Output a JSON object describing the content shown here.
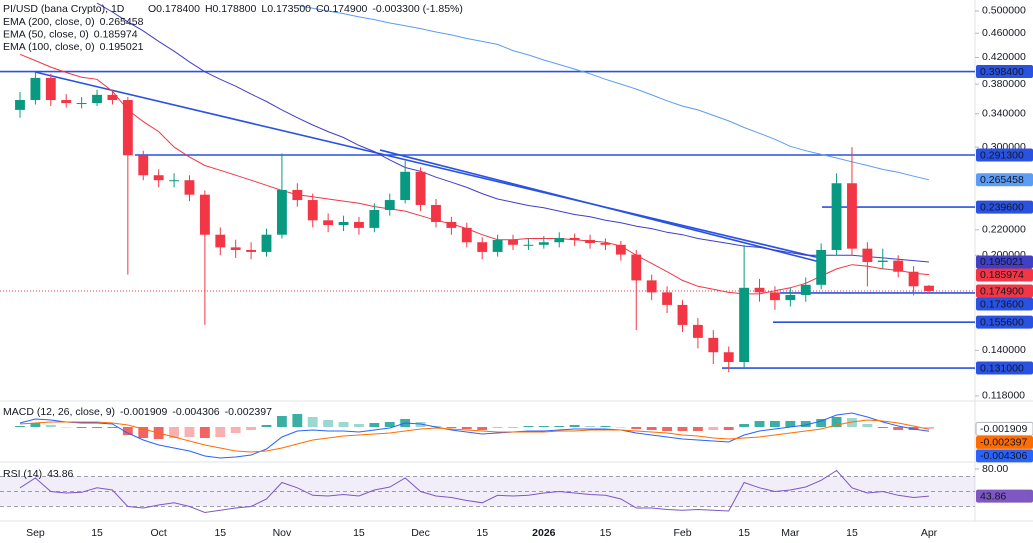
{
  "chart_data": [
    {
      "type": "candlestick",
      "title": "PI/USD (bana Crypto), 1D",
      "ohlc_labels": [
        "O0.178400",
        "H0.178800",
        "L0.173500",
        "C0.174900",
        "-0.003300 (-1.85%)"
      ],
      "categories": [
        null,
        "Sep",
        null,
        null,
        null,
        "15",
        null,
        null,
        null,
        "Oct",
        null,
        null,
        null,
        "15",
        null,
        null,
        null,
        "Nov",
        null,
        null,
        null,
        null,
        "15",
        null,
        null,
        null,
        "Dec",
        null,
        null,
        null,
        "15",
        null,
        null,
        null,
        "2026",
        null,
        null,
        null,
        "15",
        null,
        null,
        null,
        null,
        "Feb",
        null,
        null,
        null,
        "15",
        null,
        null,
        "Mar",
        null,
        null,
        null,
        "15",
        null,
        null,
        null,
        null,
        "Apr"
      ],
      "open": [
        0.345,
        0.358,
        0.389,
        0.358,
        0.354,
        0.354,
        0.365,
        0.358,
        0.291,
        0.27,
        0.265,
        0.265,
        0.251,
        0.216,
        0.206,
        0.204,
        0.2025,
        0.216,
        0.2555,
        0.246,
        0.228,
        0.224,
        0.2266,
        0.2216,
        0.237,
        0.246,
        0.2735,
        0.2415,
        0.2266,
        0.2216,
        0.21,
        0.2025,
        0.2118,
        0.208,
        0.208,
        0.21,
        0.2134,
        0.2118,
        0.2094,
        0.208,
        0.2005,
        0.182,
        0.174,
        0.166,
        0.154,
        0.1467,
        0.139,
        0.134,
        0.177,
        0.174,
        0.169,
        0.1723,
        0.179,
        0.204,
        0.262,
        0.205,
        0.195,
        0.196,
        0.188,
        0.1784
      ],
      "high": [
        0.369,
        0.398,
        0.395,
        0.366,
        0.362,
        0.372,
        0.371,
        0.362,
        0.296,
        0.276,
        0.272,
        0.27,
        0.255,
        0.222,
        0.212,
        0.21,
        0.221,
        0.293,
        0.262,
        0.252,
        0.234,
        0.232,
        0.231,
        0.243,
        0.252,
        0.285,
        0.278,
        0.247,
        0.231,
        0.226,
        0.214,
        0.216,
        0.216,
        0.213,
        0.215,
        0.218,
        0.217,
        0.216,
        0.213,
        0.211,
        0.204,
        0.186,
        0.178,
        0.169,
        0.158,
        0.151,
        0.142,
        0.208,
        0.183,
        0.178,
        0.177,
        0.184,
        0.209,
        0.272,
        0.3,
        0.21,
        0.205,
        0.2,
        0.192,
        0.1788
      ],
      "low": [
        0.335,
        0.352,
        0.35,
        0.348,
        0.347,
        0.35,
        0.352,
        0.186,
        0.265,
        0.258,
        0.258,
        0.245,
        0.154,
        0.2,
        0.198,
        0.197,
        0.199,
        0.213,
        0.24,
        0.222,
        0.218,
        0.219,
        0.216,
        0.218,
        0.232,
        0.243,
        0.236,
        0.222,
        0.216,
        0.206,
        0.197,
        0.199,
        0.204,
        0.204,
        0.205,
        0.206,
        0.207,
        0.205,
        0.204,
        0.196,
        0.151,
        0.169,
        0.161,
        0.15,
        0.141,
        0.133,
        0.129,
        0.131,
        0.168,
        0.163,
        0.165,
        0.168,
        0.176,
        0.2,
        0.2,
        0.178,
        0.19,
        0.184,
        0.172,
        0.1735
      ],
      "close": [
        0.358,
        0.389,
        0.358,
        0.354,
        0.354,
        0.365,
        0.358,
        0.291,
        0.27,
        0.265,
        0.265,
        0.251,
        0.216,
        0.206,
        0.204,
        0.2025,
        0.216,
        0.2555,
        0.246,
        0.228,
        0.224,
        0.2266,
        0.2216,
        0.237,
        0.246,
        0.2735,
        0.2415,
        0.2266,
        0.2216,
        0.21,
        0.2025,
        0.2118,
        0.208,
        0.208,
        0.21,
        0.2134,
        0.2118,
        0.2094,
        0.208,
        0.2005,
        0.182,
        0.174,
        0.166,
        0.154,
        0.1467,
        0.139,
        0.134,
        0.177,
        0.174,
        0.169,
        0.1723,
        0.179,
        0.204,
        0.262,
        0.205,
        0.195,
        0.196,
        0.188,
        0.178,
        0.1749
      ],
      "up_color": "#089981",
      "down_color": "#f23645",
      "log_scale": true,
      "ylim": [
        0.1162,
        0.521
      ],
      "yticks": [
        {
          "value": 0.5,
          "label": "0.500000"
        },
        {
          "value": 0.46,
          "label": "0.460000"
        },
        {
          "value": 0.42,
          "label": "0.420000"
        },
        {
          "value": 0.38,
          "label": "0.380000"
        },
        {
          "value": 0.34,
          "label": "0.340000"
        },
        {
          "value": 0.3,
          "label": "0.300000"
        },
        {
          "value": 0.22,
          "label": "0.220000"
        },
        {
          "value": 0.2,
          "label": "0.200000"
        },
        {
          "value": 0.14,
          "label": "0.140000"
        },
        {
          "value": 0.118,
          "label": "0.118000"
        }
      ],
      "series": [
        {
          "name": "EMA (200, close, 0)",
          "color": "#5b9cf6",
          "values": [
            null,
            null,
            null,
            null,
            null,
            null,
            null,
            null,
            null,
            null,
            null,
            null,
            null,
            null,
            null,
            null,
            null,
            null,
            0.511,
            0.505,
            0.5,
            0.495,
            0.489,
            0.484,
            0.478,
            0.473,
            0.468,
            0.462,
            0.457,
            0.451,
            0.446,
            0.441,
            0.431,
            0.424,
            0.416,
            0.409,
            0.402,
            0.395,
            0.387,
            0.38,
            0.373,
            0.365,
            0.357,
            0.35,
            0.345,
            0.338,
            0.331,
            0.323,
            0.316,
            0.309,
            0.301,
            0.296,
            0.292,
            0.288,
            0.284,
            0.28,
            0.276,
            0.273,
            0.269,
            0.265458
          ]
        },
        {
          "name": "EMA (50, close, 0)",
          "color": "#f23645",
          "values": [
            0.425,
            0.415,
            0.405,
            0.397,
            0.39,
            0.387,
            0.37,
            0.345,
            0.33,
            0.318,
            0.3,
            0.289,
            0.28,
            0.275,
            0.27,
            0.265,
            0.26,
            0.255,
            0.251,
            0.249,
            0.247,
            0.245,
            0.243,
            0.24,
            0.238,
            0.236,
            0.232,
            0.228,
            0.225,
            0.221,
            0.216,
            0.212,
            0.212,
            0.213,
            0.213,
            0.213,
            0.212,
            0.211,
            0.21,
            0.207,
            0.2,
            0.194,
            0.188,
            0.182,
            0.178,
            0.176,
            0.174,
            0.173,
            0.173,
            0.175,
            0.177,
            0.18,
            0.185,
            0.19,
            0.193,
            0.192,
            0.19,
            0.189,
            0.187,
            0.185974
          ]
        },
        {
          "name": "EMA (100, close, 0)",
          "color": "#3f3fc8",
          "values": [
            null,
            null,
            null,
            null,
            null,
            0.515,
            0.498,
            0.48,
            0.464,
            0.446,
            0.43,
            0.413,
            0.398,
            0.387,
            0.377,
            0.366,
            0.356,
            0.345,
            0.335,
            0.326,
            0.318,
            0.311,
            0.302,
            0.295,
            0.286,
            0.278,
            0.274,
            0.268,
            0.263,
            0.258,
            0.252,
            0.247,
            0.244,
            0.241,
            0.239,
            0.236,
            0.233,
            0.231,
            0.228,
            0.226,
            0.223,
            0.221,
            0.218,
            0.216,
            0.213,
            0.211,
            0.209,
            0.207,
            0.206,
            0.204,
            0.202,
            0.2,
            0.2,
            0.2,
            0.2,
            0.199,
            0.198,
            0.197,
            0.196,
            0.195021
          ]
        }
      ],
      "levels": [
        {
          "value": 0.3984,
          "label": "0.398400"
        },
        {
          "value": 0.2913,
          "label": "0.291300"
        },
        {
          "value": 0.2396,
          "label": "0.239600"
        },
        {
          "value": 0.1736,
          "label": "0.173600"
        },
        {
          "value": 0.1556,
          "label": "0.155600"
        },
        {
          "value": 0.131,
          "label": "0.131000"
        }
      ],
      "level_color": "#2952e3",
      "tags": [
        {
          "value": 0.265458,
          "label": "0.265458",
          "color": "#5b9cf6"
        },
        {
          "value": 0.195021,
          "label": "0.195021",
          "color": "#3f3fc8"
        },
        {
          "value": 0.185974,
          "label": "0.185974",
          "color": "#f23645"
        },
        {
          "value": 0.1749,
          "label": "0.174900",
          "color": "#f23645"
        }
      ]
    },
    {
      "type": "macd",
      "title": "MACD (12, 26, close, 9)",
      "ylim": [
        -0.035,
        0.025
      ],
      "histogram": [
        0.001,
        0.004,
        0.002,
        0,
        -0.001,
        -0.001,
        -0.001,
        -0.008,
        -0.011,
        -0.012,
        -0.011,
        -0.01,
        -0.011,
        -0.01,
        -0.006,
        -0.003,
        0.002,
        0.011,
        0.013,
        0.01,
        0.007,
        0.005,
        0.003,
        0.004,
        0.005,
        0.008,
        0.005,
        0.001,
        -0.001,
        -0.002,
        -0.003,
        -0.001,
        0,
        0.001,
        0.001,
        0.001,
        0.002,
        0.001,
        0.001,
        0,
        -0.002,
        -0.003,
        -0.004,
        -0.004,
        -0.004,
        -0.003,
        -0.003,
        0.003,
        0.006,
        0.006,
        0.006,
        0.006,
        0.008,
        0.01,
        0.009,
        0.003,
        -0.001,
        -0.003,
        -0.003,
        -0.001909
      ],
      "pos_color": "#26a69a",
      "neg_color": "#ef5350",
      "series": [
        {
          "color": "#2962ff",
          "values": [
            0.004,
            0.008,
            0.007,
            0.005,
            0.004,
            0.004,
            0.003,
            -0.006,
            -0.013,
            -0.018,
            -0.021,
            -0.024,
            -0.029,
            -0.031,
            -0.03,
            -0.028,
            -0.022,
            -0.01,
            -0.004,
            -0.003,
            -0.004,
            -0.004,
            -0.005,
            -0.003,
            -0.001,
            0.004,
            0.003,
            0,
            -0.003,
            -0.005,
            -0.007,
            -0.006,
            -0.005,
            -0.004,
            -0.004,
            -0.003,
            -0.002,
            -0.002,
            -0.002,
            -0.003,
            -0.006,
            -0.008,
            -0.01,
            -0.012,
            -0.013,
            -0.014,
            -0.015,
            -0.008,
            -0.004,
            -0.002,
            0,
            0.002,
            0.006,
            0.012,
            0.014,
            0.01,
            0.005,
            0.001,
            -0.002,
            -0.004306
          ]
        },
        {
          "color": "#ff6d00",
          "values": [
            0.003,
            0.004,
            0.005,
            0.005,
            0.005,
            0.005,
            0.004,
            0.002,
            -0.002,
            -0.006,
            -0.01,
            -0.014,
            -0.018,
            -0.021,
            -0.024,
            -0.025,
            -0.024,
            -0.021,
            -0.017,
            -0.013,
            -0.011,
            -0.009,
            -0.008,
            -0.007,
            -0.006,
            -0.004,
            -0.002,
            -0.001,
            -0.002,
            -0.003,
            -0.004,
            -0.005,
            -0.005,
            -0.005,
            -0.005,
            -0.004,
            -0.004,
            -0.003,
            -0.003,
            -0.003,
            -0.004,
            -0.005,
            -0.006,
            -0.008,
            -0.009,
            -0.011,
            -0.012,
            -0.011,
            -0.01,
            -0.008,
            -0.006,
            -0.004,
            -0.002,
            0.002,
            0.005,
            0.007,
            0.006,
            0.004,
            0.001,
            -0.002397
          ]
        }
      ],
      "tags": [
        {
          "value": -0.001909,
          "label": "-0.001909",
          "color": "#ffffff"
        },
        {
          "value": -0.002397,
          "label": "-0.002397",
          "color": "#ff6d00"
        },
        {
          "value": -0.004306,
          "label": "-0.004306",
          "color": "#2962ff"
        }
      ]
    },
    {
      "type": "line",
      "title": "RSI (14)",
      "color": "#7e57c2",
      "values": [
        55,
        68,
        50,
        48,
        49,
        55,
        52,
        30,
        28,
        32,
        35,
        30,
        22,
        25,
        28,
        30,
        40,
        62,
        55,
        45,
        44,
        46,
        44,
        52,
        56,
        68,
        50,
        44,
        42,
        38,
        35,
        45,
        44,
        45,
        48,
        50,
        48,
        46,
        45,
        40,
        28,
        28,
        26,
        25,
        26,
        25,
        24,
        62,
        55,
        50,
        52,
        56,
        65,
        78,
        55,
        48,
        50,
        45,
        42,
        43.86
      ],
      "ylim": [
        12,
        88
      ],
      "yticks": [
        {
          "value": 80,
          "label": "80.00"
        }
      ],
      "levels": [
        70,
        50,
        30
      ],
      "tags": [
        {
          "value": 43.86,
          "label": "43.86",
          "color": "#7e57c2"
        }
      ]
    }
  ]
}
